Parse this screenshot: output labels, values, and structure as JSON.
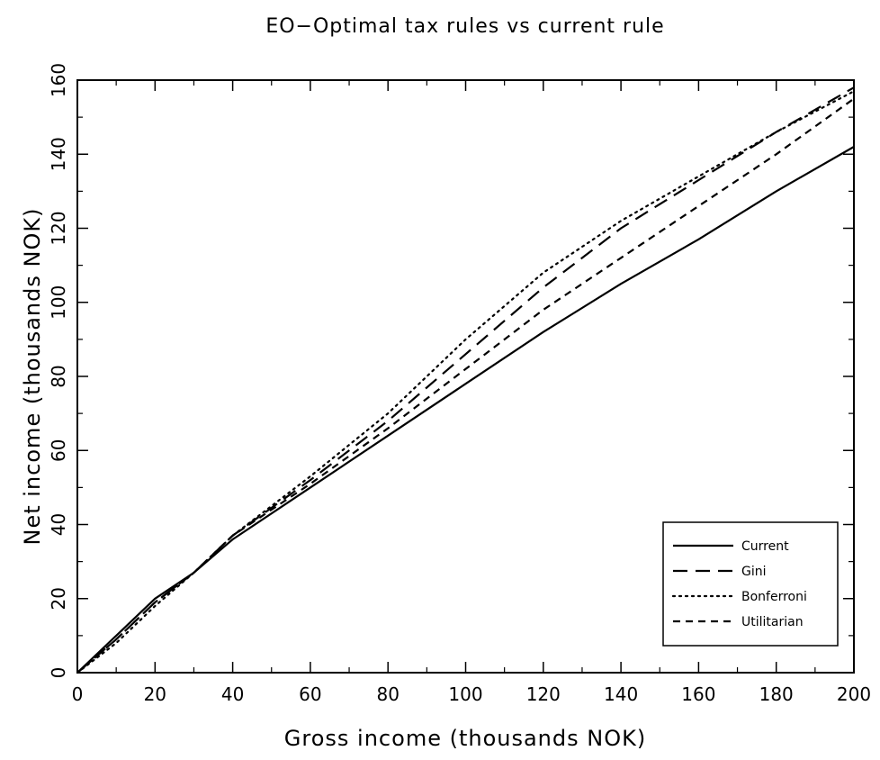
{
  "chart_data": {
    "type": "line",
    "title": "EO−Optimal tax rules vs current rule",
    "xlabel": "Gross income (thousands NOK)",
    "ylabel": "Net income (thousands NOK)",
    "xlim": [
      0,
      200
    ],
    "ylim": [
      0,
      160
    ],
    "xticks": [
      0,
      20,
      40,
      60,
      80,
      100,
      120,
      140,
      160,
      180,
      200
    ],
    "yticks": [
      0,
      20,
      40,
      60,
      80,
      100,
      120,
      140,
      160
    ],
    "grid": false,
    "legend_position": "bottom-right",
    "series": [
      {
        "name": "Current",
        "dash": "solid",
        "x": [
          0,
          10,
          20,
          30,
          40,
          60,
          80,
          100,
          120,
          140,
          160,
          180,
          200
        ],
        "y": [
          0,
          10,
          20,
          27,
          36,
          50,
          64,
          78,
          92,
          105,
          117,
          130,
          142
        ]
      },
      {
        "name": "Gini",
        "dash": "longdash",
        "x": [
          0,
          10,
          20,
          30,
          40,
          60,
          80,
          100,
          120,
          140,
          160,
          180,
          200
        ],
        "y": [
          0,
          9,
          19,
          27,
          37,
          52,
          68,
          86,
          104,
          120,
          133,
          146,
          158
        ]
      },
      {
        "name": "Bonferroni",
        "dash": "dotted",
        "x": [
          0,
          10,
          20,
          30,
          40,
          60,
          80,
          100,
          120,
          140,
          160,
          180,
          200
        ],
        "y": [
          0,
          8,
          18,
          27,
          37,
          53,
          70,
          90,
          108,
          122,
          134,
          146,
          157
        ]
      },
      {
        "name": "Utilitarian",
        "dash": "shortdash",
        "x": [
          0,
          10,
          20,
          30,
          40,
          60,
          80,
          100,
          120,
          140,
          160,
          180,
          200
        ],
        "y": [
          0,
          9,
          19,
          27,
          37,
          51,
          66,
          82,
          98,
          112,
          126,
          140,
          155
        ]
      }
    ]
  }
}
